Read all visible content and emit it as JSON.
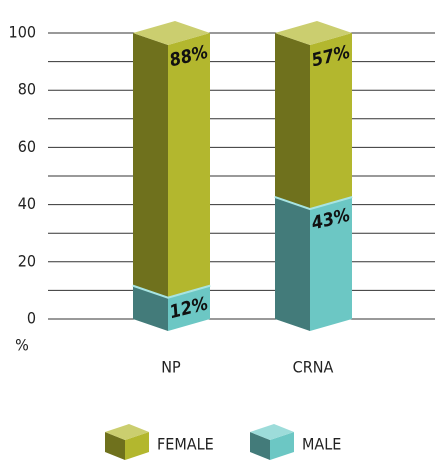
{
  "chart_data": {
    "type": "stacked_bar_3d",
    "categories": [
      "NP",
      "CRNA"
    ],
    "series": [
      {
        "name": "MALE",
        "color": "#6cc7c4",
        "values": [
          12,
          43
        ],
        "value_labels": [
          "12%",
          "43%"
        ]
      },
      {
        "name": "FEMALE",
        "color": "#b3b72e",
        "values": [
          88,
          57
        ],
        "value_labels": [
          "88%",
          "57%"
        ]
      }
    ],
    "ylabel": "%",
    "ylim": [
      0,
      100
    ],
    "yticks": [
      0,
      20,
      40,
      60,
      80,
      100
    ],
    "minor_yticks": [
      10,
      30,
      50,
      70,
      90
    ],
    "grid": true,
    "legend": "bottom"
  }
}
